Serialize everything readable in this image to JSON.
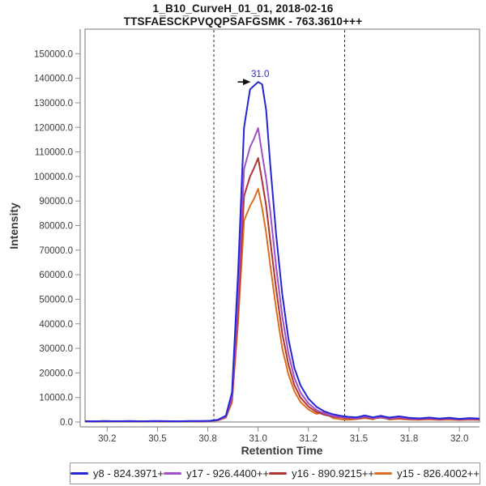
{
  "window": {
    "background": "#ffffff"
  },
  "header": {
    "title": "1_B10_CurveH_01_01, 2018-02-16",
    "subtitle": "TTSFAE̅SCK̅PVQQPS̅AFG̅SMK - 763.3610+++"
  },
  "chart_data": {
    "type": "line",
    "title": "1_B10_CurveH_01_01, 2018-02-16",
    "subtitle": "TTSFAE̅SCK̅PVQQPS̅AFG̅SMK - 763.3610+++",
    "xlabel": "Retention Time",
    "ylabel": "Intensity",
    "xlim": [
      30.14,
      32.1
    ],
    "ylim": [
      0,
      160000
    ],
    "grid": false,
    "legend_position": "bottom",
    "frame_color": "#8c8c8c",
    "boundary_color": "#222222",
    "text_color": "#3a3a3a",
    "x_ticks": {
      "values": [
        30.25,
        30.5,
        30.75,
        31.0,
        31.25,
        31.5,
        31.75,
        32.0
      ],
      "labels": [
        "30.2",
        "30.5",
        "30.8",
        "31.0",
        "31.2",
        "31.5",
        "31.8",
        "32.0"
      ]
    },
    "y_ticks": {
      "values": [
        0,
        10000,
        20000,
        30000,
        40000,
        50000,
        60000,
        70000,
        80000,
        90000,
        100000,
        110000,
        120000,
        130000,
        140000,
        150000
      ],
      "labels": [
        "0.0",
        "10000.0",
        "20000.0",
        "30000.0",
        "40000.0",
        "50000.0",
        "60000.0",
        "70000.0",
        "80000.0",
        "90000.0",
        "100000.0",
        "110000.0",
        "120000.0",
        "130000.0",
        "140000.0",
        "150000.0"
      ]
    },
    "integration_boundaries": [
      30.78,
      31.43
    ],
    "peak_annotation": {
      "label": "31.0",
      "x": 31.01,
      "y": 138500,
      "color": "#2525d5"
    },
    "id_arrow": {
      "x": 30.963,
      "y": 138500
    },
    "x": [
      30.14,
      30.18,
      30.24,
      30.3,
      30.36,
      30.42,
      30.48,
      30.54,
      30.6,
      30.66,
      30.72,
      30.76,
      30.8,
      30.84,
      30.87,
      30.9,
      30.93,
      30.96,
      30.98,
      31.0,
      31.02,
      31.04,
      31.06,
      31.09,
      31.12,
      31.15,
      31.18,
      31.21,
      31.25,
      31.29,
      31.33,
      31.37,
      31.41,
      31.45,
      31.49,
      31.53,
      31.57,
      31.61,
      31.65,
      31.7,
      31.75,
      31.8,
      31.85,
      31.9,
      31.95,
      32.0,
      32.05,
      32.1
    ],
    "series": [
      {
        "name": "y8 - 824.3971+",
        "color": "#2525d5",
        "peak_height": 138500,
        "values": [
          350,
          250,
          420,
          300,
          380,
          300,
          430,
          350,
          300,
          420,
          380,
          500,
          900,
          2600,
          12000,
          60000,
          120000,
          135500,
          137000,
          138500,
          137500,
          127000,
          105000,
          76000,
          52000,
          34000,
          22000,
          15000,
          9500,
          6200,
          4300,
          3200,
          2500,
          2100,
          1900,
          2700,
          1900,
          2500,
          1800,
          2300,
          1700,
          1500,
          1800,
          1400,
          1700,
          1300,
          1600,
          1400
        ]
      },
      {
        "name": "y17 - 926.4400++",
        "color": "#a14fc9",
        "peak_height": 119700,
        "values": [
          280,
          320,
          260,
          350,
          300,
          260,
          340,
          300,
          260,
          340,
          300,
          420,
          800,
          2200,
          10000,
          50000,
          103000,
          112000,
          115500,
          119700,
          109000,
          99000,
          86000,
          63000,
          43000,
          28000,
          18000,
          12000,
          7600,
          4900,
          3400,
          2500,
          2000,
          1700,
          1500,
          2200,
          1600,
          2100,
          1500,
          1900,
          1400,
          1300,
          1500,
          1200,
          1400,
          1100,
          1300,
          1200
        ]
      },
      {
        "name": "y16 - 890.9215++",
        "color": "#b03430",
        "peak_height": 107500,
        "values": [
          260,
          300,
          240,
          320,
          280,
          240,
          320,
          280,
          240,
          320,
          280,
          400,
          750,
          2000,
          9000,
          45000,
          92000,
          100000,
          103500,
          107500,
          98000,
          88000,
          74000,
          54000,
          36000,
          23500,
          15000,
          10000,
          6300,
          4100,
          2900,
          2200,
          1800,
          1500,
          1400,
          1900,
          1400,
          1800,
          1300,
          1600,
          1200,
          1100,
          1300,
          1000,
          1200,
          950,
          1100,
          1000
        ]
      },
      {
        "name": "y15 - 826.4002++",
        "color": "#dd6e1f",
        "peak_height": 95000,
        "values": [
          230,
          270,
          220,
          290,
          250,
          220,
          290,
          250,
          220,
          290,
          250,
          360,
          650,
          1800,
          8000,
          40000,
          82000,
          88000,
          91000,
          95000,
          87000,
          77000,
          64000,
          46000,
          30000,
          19500,
          12500,
          8200,
          5100,
          3300,
          4200,
          1600,
          1100,
          900,
          1200,
          1600,
          1100,
          2600,
          1000,
          1300,
          1000,
          900,
          1100,
          850,
          1000,
          800,
          950,
          850
        ]
      }
    ]
  }
}
